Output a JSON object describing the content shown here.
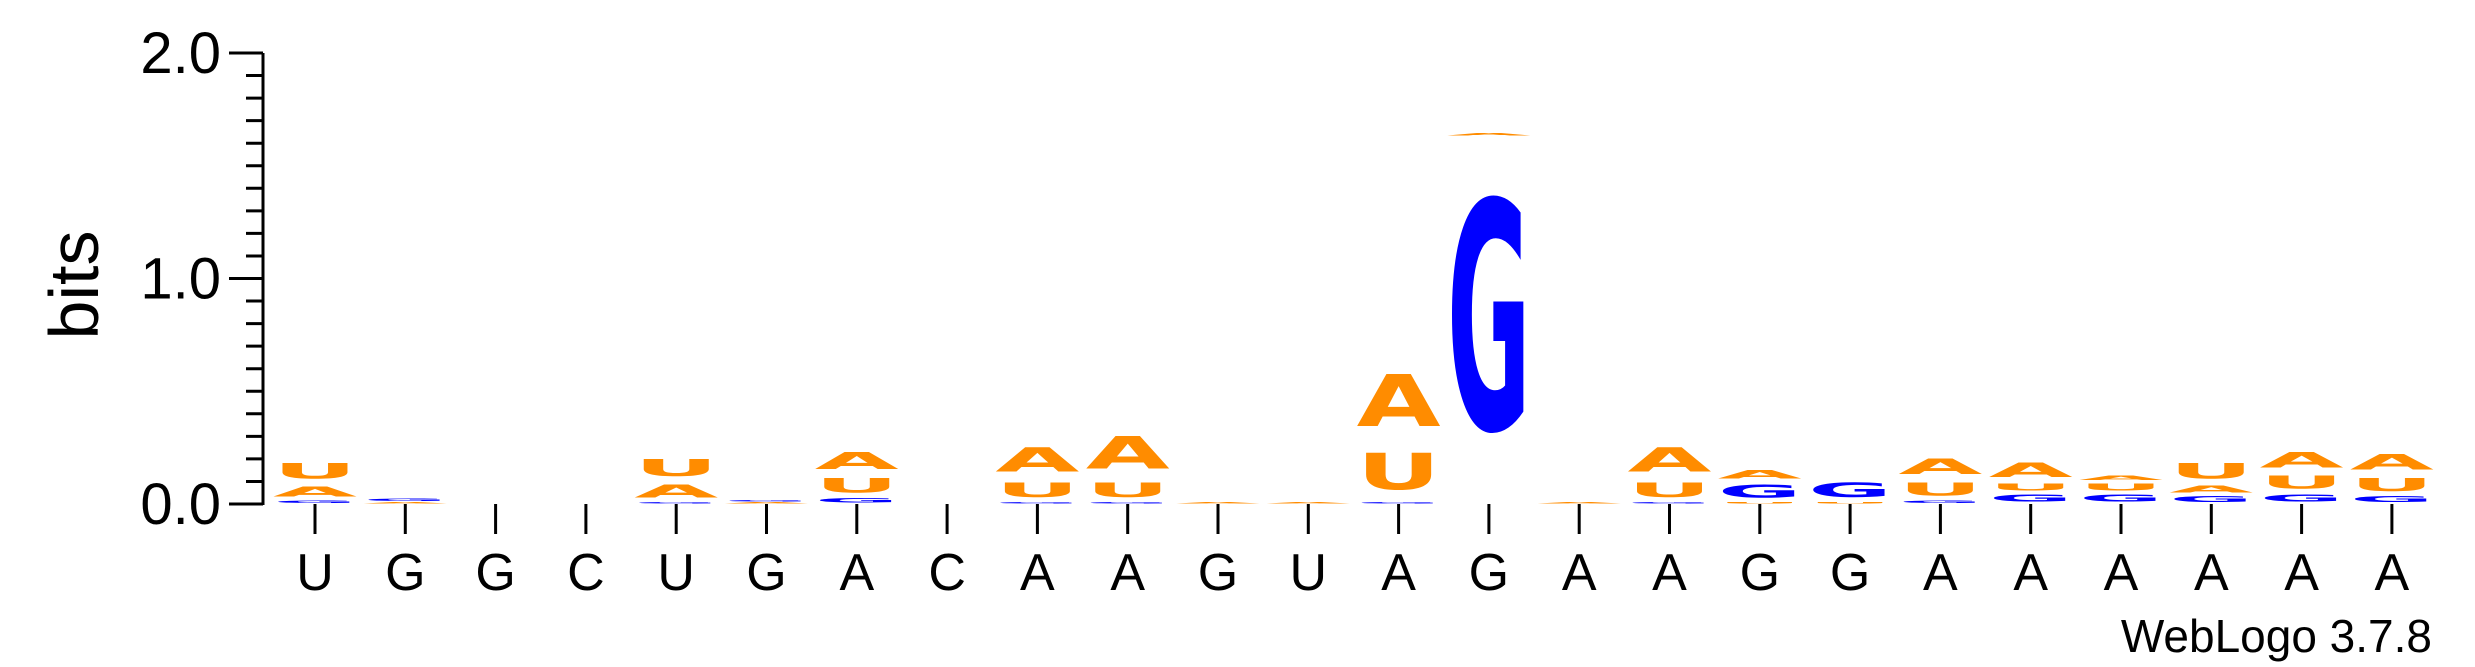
{
  "chart_data": {
    "type": "sequence-logo",
    "ylabel": "bits",
    "ylim": [
      0,
      2.0
    ],
    "yticks": [
      {
        "value": 0.0,
        "label": "0.0"
      },
      {
        "value": 1.0,
        "label": "1.0"
      },
      {
        "value": 2.0,
        "label": "2.0"
      }
    ],
    "consensus": [
      "U",
      "G",
      "G",
      "C",
      "U",
      "G",
      "A",
      "C",
      "A",
      "A",
      "G",
      "U",
      "A",
      "G",
      "A",
      "A",
      "G",
      "G",
      "A",
      "A",
      "A",
      "A",
      "A",
      "A"
    ],
    "positions": [
      {
        "stack": [
          {
            "letter": "G",
            "bits": 0.02
          },
          {
            "letter": "A",
            "bits": 0.07
          },
          {
            "letter": "U",
            "bits": 0.11
          }
        ]
      },
      {
        "stack": [
          {
            "letter": "A",
            "bits": 0.01
          },
          {
            "letter": "G",
            "bits": 0.02
          }
        ]
      },
      {
        "stack": []
      },
      {
        "stack": []
      },
      {
        "stack": [
          {
            "letter": "G",
            "bits": 0.01
          },
          {
            "letter": "A",
            "bits": 0.09
          },
          {
            "letter": "U",
            "bits": 0.12
          }
        ]
      },
      {
        "stack": [
          {
            "letter": "A",
            "bits": 0.01
          },
          {
            "letter": "G",
            "bits": 0.01
          }
        ]
      },
      {
        "stack": [
          {
            "letter": "G",
            "bits": 0.03
          },
          {
            "letter": "U",
            "bits": 0.1
          },
          {
            "letter": "A",
            "bits": 0.12
          }
        ]
      },
      {
        "stack": []
      },
      {
        "stack": [
          {
            "letter": "G",
            "bits": 0.01
          },
          {
            "letter": "U",
            "bits": 0.1
          },
          {
            "letter": "A",
            "bits": 0.17
          }
        ]
      },
      {
        "stack": [
          {
            "letter": "G",
            "bits": 0.01
          },
          {
            "letter": "U",
            "bits": 0.1
          },
          {
            "letter": "A",
            "bits": 0.23
          }
        ]
      },
      {
        "stack": [
          {
            "letter": "A",
            "bits": 0.01
          }
        ]
      },
      {
        "stack": [
          {
            "letter": "A",
            "bits": 0.01
          }
        ]
      },
      {
        "stack": [
          {
            "letter": "G",
            "bits": 0.01
          },
          {
            "letter": "U",
            "bits": 0.26
          },
          {
            "letter": "A",
            "bits": 0.37
          }
        ]
      },
      {
        "stack": [
          {
            "letter": "G",
            "bits": 1.63
          },
          {
            "letter": "A",
            "bits": 0.02
          }
        ]
      },
      {
        "stack": [
          {
            "letter": "A",
            "bits": 0.01
          }
        ]
      },
      {
        "stack": [
          {
            "letter": "G",
            "bits": 0.01
          },
          {
            "letter": "U",
            "bits": 0.1
          },
          {
            "letter": "A",
            "bits": 0.17
          }
        ]
      },
      {
        "stack": [
          {
            "letter": "U",
            "bits": 0.01
          },
          {
            "letter": "G",
            "bits": 0.09
          },
          {
            "letter": "A",
            "bits": 0.06
          }
        ]
      },
      {
        "stack": [
          {
            "letter": "U",
            "bits": 0.01
          },
          {
            "letter": "G",
            "bits": 0.1
          }
        ]
      },
      {
        "stack": [
          {
            "letter": "G",
            "bits": 0.02
          },
          {
            "letter": "U",
            "bits": 0.09
          },
          {
            "letter": "A",
            "bits": 0.11
          }
        ]
      },
      {
        "stack": [
          {
            "letter": "G",
            "bits": 0.05
          },
          {
            "letter": "U",
            "bits": 0.05
          },
          {
            "letter": "A",
            "bits": 0.1
          }
        ]
      },
      {
        "stack": [
          {
            "letter": "G",
            "bits": 0.05
          },
          {
            "letter": "U",
            "bits": 0.05
          },
          {
            "letter": "A",
            "bits": 0.03
          }
        ]
      },
      {
        "stack": [
          {
            "letter": "G",
            "bits": 0.04
          },
          {
            "letter": "A",
            "bits": 0.05
          },
          {
            "letter": "U",
            "bits": 0.11
          }
        ]
      },
      {
        "stack": [
          {
            "letter": "G",
            "bits": 0.05
          },
          {
            "letter": "U",
            "bits": 0.09
          },
          {
            "letter": "A",
            "bits": 0.11
          }
        ]
      },
      {
        "stack": [
          {
            "letter": "G",
            "bits": 0.04
          },
          {
            "letter": "U",
            "bits": 0.09
          },
          {
            "letter": "A",
            "bits": 0.11
          }
        ]
      }
    ],
    "colors": {
      "A": "#ff8c00",
      "U": "#ff8c00",
      "G": "#0000ff",
      "C": "#0000ff"
    },
    "credit": "WebLogo 3.7.8"
  }
}
